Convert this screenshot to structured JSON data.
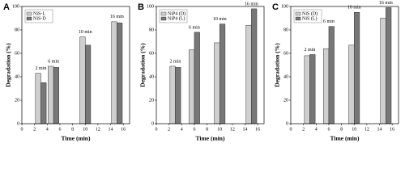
{
  "chart_data": [
    {
      "type": "bar",
      "label": "A",
      "xlabel": "Time (min)",
      "ylabel": "Degradation (%)",
      "x": [
        3,
        5,
        10,
        15
      ],
      "annotations": [
        "2 min",
        "6 min",
        "10 min",
        "16 min"
      ],
      "series": [
        {
          "name": "NiS-L",
          "color": "#cfcfcf",
          "values": [
            43,
            49,
            74,
            87
          ]
        },
        {
          "name": "NiS-D",
          "color": "#777777",
          "values": [
            35,
            48,
            67,
            86
          ]
        }
      ],
      "xlim": [
        0,
        17
      ],
      "xticks": [
        0,
        2,
        4,
        6,
        8,
        10,
        12,
        14,
        16
      ],
      "ylim": [
        0,
        100
      ],
      "yticks": [
        0,
        20,
        40,
        60,
        80,
        100
      ]
    },
    {
      "type": "bar",
      "label": "B",
      "xlabel": "Time (min)",
      "ylabel": "Degradation (%)",
      "x": [
        3,
        6,
        10,
        15
      ],
      "annotations": [
        "2 min",
        "6 min",
        "10 min",
        "16 min"
      ],
      "series": [
        {
          "name": "NiP4 (D)",
          "color": "#cfcfcf",
          "values": [
            49,
            63,
            69,
            84
          ]
        },
        {
          "name": "NiP4 (L)",
          "color": "#777777",
          "values": [
            48,
            78,
            85,
            98
          ]
        }
      ],
      "xlim": [
        0,
        17
      ],
      "xticks": [
        0,
        2,
        4,
        6,
        8,
        10,
        12,
        14,
        16
      ],
      "ylim": [
        0,
        100
      ],
      "yticks": [
        0,
        20,
        40,
        60,
        80,
        100
      ]
    },
    {
      "type": "bar",
      "label": "C",
      "xlabel": "Time (min)",
      "ylabel": "Degradation (%)",
      "x": [
        3,
        6,
        10,
        15
      ],
      "annotations": [
        "2 min",
        "6 min",
        "10 min",
        "16 min"
      ],
      "series": [
        {
          "name": "NiS (D)",
          "color": "#cfcfcf",
          "values": [
            58,
            64,
            67,
            90
          ]
        },
        {
          "name": "NiS (L)",
          "color": "#777777",
          "values": [
            59,
            83,
            95,
            99
          ]
        }
      ],
      "xlim": [
        0,
        17
      ],
      "xticks": [
        0,
        2,
        4,
        6,
        8,
        10,
        12,
        14,
        16
      ],
      "ylim": [
        0,
        100
      ],
      "yticks": [
        0,
        20,
        40,
        60,
        80,
        100
      ]
    }
  ]
}
